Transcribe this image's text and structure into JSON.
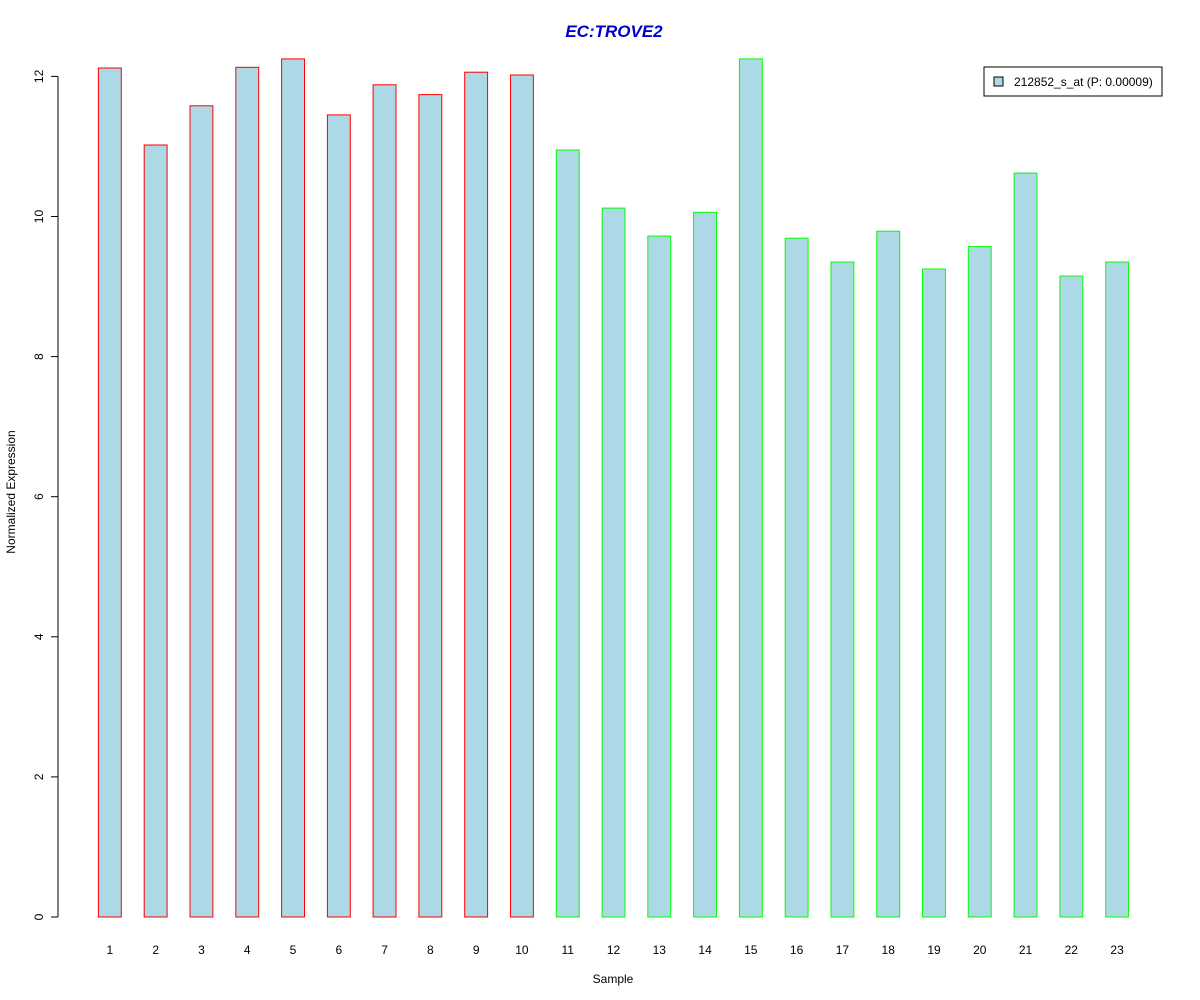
{
  "chart_data": {
    "type": "bar",
    "title": "EC:TROVE2",
    "xlabel": "Sample",
    "ylabel": "Normalized Expression",
    "ylim": [
      0,
      12.5
    ],
    "yticks": [
      0,
      2,
      4,
      6,
      8,
      10,
      12
    ],
    "grid": false,
    "legend_position": "top-right",
    "bar_fill": "#add8e6",
    "title_color": "#0000cc",
    "categories": [
      "1",
      "2",
      "3",
      "4",
      "5",
      "6",
      "7",
      "8",
      "9",
      "10",
      "11",
      "12",
      "13",
      "14",
      "15",
      "16",
      "17",
      "18",
      "19",
      "20",
      "21",
      "22",
      "23"
    ],
    "series": [
      {
        "name": "212852_s_at (P: 0.00009)",
        "values": [
          12.12,
          11.02,
          11.58,
          12.13,
          12.25,
          11.45,
          11.88,
          11.74,
          12.06,
          12.02,
          10.95,
          10.12,
          9.72,
          10.06,
          12.25,
          9.69,
          9.35,
          9.79,
          9.25,
          9.57,
          10.62,
          9.15,
          9.35
        ],
        "border_colors": [
          "#ff0000",
          "#ff0000",
          "#ff0000",
          "#ff0000",
          "#ff0000",
          "#ff0000",
          "#ff0000",
          "#ff0000",
          "#ff0000",
          "#ff0000",
          "#00ff00",
          "#00ff00",
          "#00ff00",
          "#00ff00",
          "#00ff00",
          "#00ff00",
          "#00ff00",
          "#00ff00",
          "#00ff00",
          "#00ff00",
          "#00ff00",
          "#00ff00",
          "#00ff00"
        ]
      }
    ]
  }
}
